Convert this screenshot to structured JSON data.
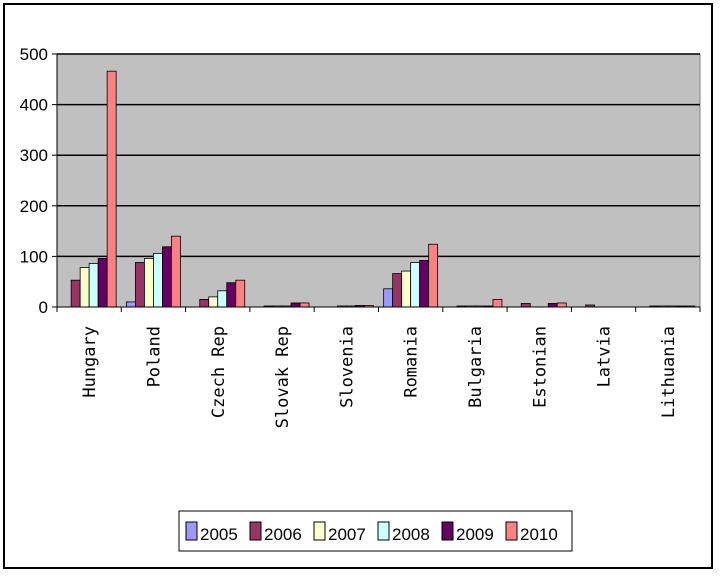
{
  "chart_data": {
    "type": "bar",
    "title": "",
    "xlabel": "",
    "ylabel": "",
    "ylim": [
      0,
      500
    ],
    "yticks": [
      0,
      100,
      200,
      300,
      400,
      500
    ],
    "grid": "horizontal",
    "legend_position": "bottom",
    "categories": [
      "Hungary",
      "Poland",
      "Czech Rep",
      "Slovak Rep",
      "Slovenia",
      "Romania",
      "Bulgaria",
      "Estonian",
      "Latvia",
      "Lithuania"
    ],
    "series": [
      {
        "name": "2005",
        "color": "#9999ff",
        "values": [
          0,
          10,
          0,
          0,
          0,
          36,
          0,
          0,
          0,
          0
        ]
      },
      {
        "name": "2006",
        "color": "#993366",
        "values": [
          53,
          88,
          15,
          2,
          0,
          66,
          2,
          7,
          4,
          2
        ]
      },
      {
        "name": "2007",
        "color": "#ffffcc",
        "values": [
          78,
          96,
          20,
          2,
          2,
          71,
          2,
          0,
          0,
          2
        ]
      },
      {
        "name": "2008",
        "color": "#ccffff",
        "values": [
          86,
          106,
          32,
          2,
          2,
          88,
          2,
          0,
          0,
          2
        ]
      },
      {
        "name": "2009",
        "color": "#660066",
        "values": [
          96,
          119,
          48,
          8,
          3,
          92,
          2,
          7,
          0,
          2
        ]
      },
      {
        "name": "2010",
        "color": "#ff8080",
        "values": [
          466,
          140,
          53,
          8,
          3,
          124,
          15,
          8,
          0,
          2
        ]
      }
    ]
  },
  "colors": {
    "plot_background": "#c0c0c0",
    "gridline": "#000000"
  }
}
